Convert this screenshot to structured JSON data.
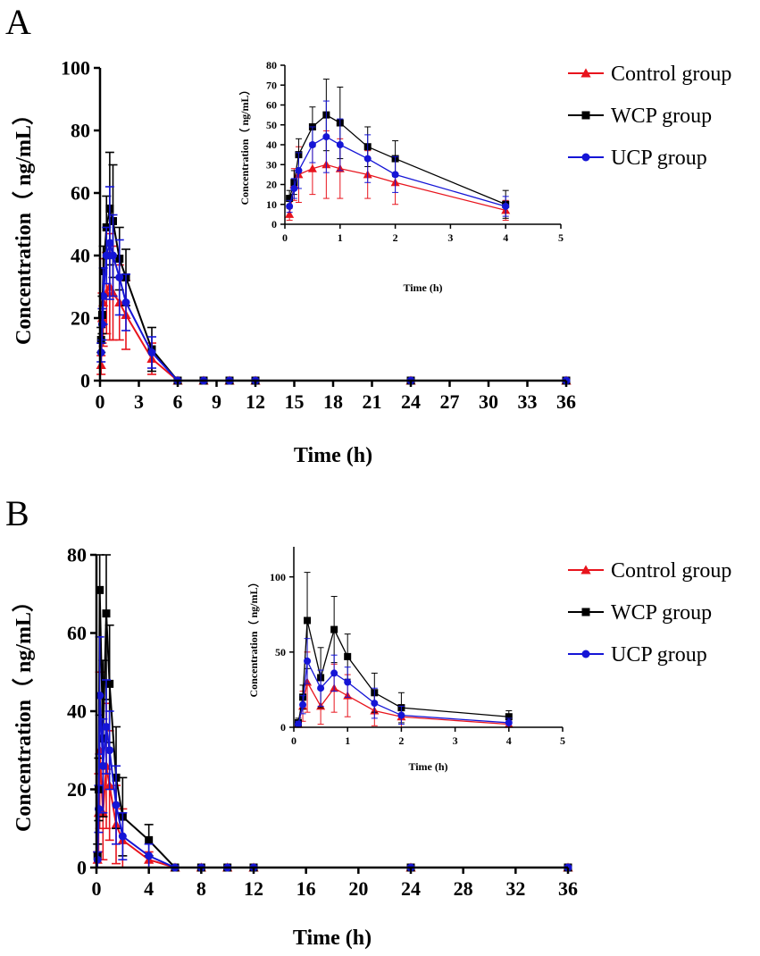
{
  "figure": {
    "colors": {
      "control": "#e8141d",
      "wcp": "#000000",
      "ucp": "#1515d6"
    },
    "legend_labels": [
      "Control group",
      "WCP group",
      "UCP group"
    ]
  },
  "chart_data": [
    {
      "id": "A-main",
      "panel_label": "A",
      "type": "line",
      "xlabel": "Time (h)",
      "ylabel": "Concentration（ ng/mL）",
      "xlim": [
        0,
        36
      ],
      "ylim": [
        0,
        100
      ],
      "xticks": [
        0,
        3,
        6,
        9,
        12,
        15,
        18,
        21,
        24,
        27,
        30,
        33,
        36
      ],
      "yticks": [
        0,
        20,
        40,
        60,
        80,
        100
      ],
      "x": [
        0.083,
        0.167,
        0.25,
        0.5,
        0.75,
        1,
        1.5,
        2,
        4,
        6,
        8,
        10,
        12,
        24,
        36
      ],
      "series": [
        {
          "name": "Control group",
          "key": "control",
          "marker": "triangle",
          "values": [
            5,
            20,
            25,
            28,
            30,
            28,
            25,
            21,
            7,
            0,
            0,
            0,
            0,
            0,
            0
          ],
          "errors": [
            3,
            8,
            14,
            13,
            17,
            15,
            12,
            11,
            5,
            0,
            0,
            0,
            0,
            0,
            0
          ]
        },
        {
          "name": "WCP group",
          "key": "wcp",
          "marker": "square",
          "values": [
            13,
            21,
            35,
            49,
            55,
            51,
            39,
            33,
            10,
            0,
            0,
            0,
            0,
            0,
            0
          ],
          "errors": [
            4,
            6,
            8,
            10,
            18,
            18,
            10,
            9,
            7,
            0,
            0,
            0,
            0,
            0,
            0
          ]
        },
        {
          "name": "UCP group",
          "key": "ucp",
          "marker": "circle",
          "values": [
            9,
            18,
            27,
            40,
            44,
            40,
            33,
            25,
            9,
            0,
            0,
            0,
            0,
            0,
            0
          ],
          "errors": [
            3,
            5,
            9,
            9,
            18,
            13,
            12,
            9,
            5,
            0,
            0,
            0,
            0,
            0,
            0
          ]
        }
      ]
    },
    {
      "id": "A-inset",
      "type": "line",
      "xlabel": "Time (h)",
      "ylabel": "Concentration（ ng/mL）",
      "xlim": [
        0,
        5
      ],
      "ylim": [
        0,
        80
      ],
      "xticks": [
        0,
        1,
        2,
        3,
        4,
        5
      ],
      "yticks": [
        0,
        10,
        20,
        30,
        40,
        50,
        60,
        70,
        80
      ],
      "x": [
        0.083,
        0.167,
        0.25,
        0.5,
        0.75,
        1,
        1.5,
        2,
        4
      ],
      "series": [
        {
          "name": "Control group",
          "key": "control",
          "marker": "triangle",
          "values": [
            5,
            20,
            25,
            28,
            30,
            28,
            25,
            21,
            7
          ],
          "errors": [
            3,
            8,
            14,
            13,
            17,
            15,
            12,
            11,
            5
          ]
        },
        {
          "name": "WCP group",
          "key": "wcp",
          "marker": "square",
          "values": [
            13,
            21,
            35,
            49,
            55,
            51,
            39,
            33,
            10
          ],
          "errors": [
            4,
            6,
            8,
            10,
            18,
            18,
            10,
            9,
            7
          ]
        },
        {
          "name": "UCP group",
          "key": "ucp",
          "marker": "circle",
          "values": [
            9,
            18,
            27,
            40,
            44,
            40,
            33,
            25,
            9
          ],
          "errors": [
            3,
            5,
            9,
            9,
            18,
            13,
            12,
            9,
            5
          ]
        }
      ]
    },
    {
      "id": "B-main",
      "panel_label": "B",
      "type": "line",
      "xlabel": "Time (h)",
      "ylabel": "Concentration（ ng/mL）",
      "xlim": [
        0,
        36
      ],
      "ylim": [
        0,
        80
      ],
      "xticks": [
        0,
        4,
        8,
        12,
        16,
        20,
        24,
        28,
        32,
        36
      ],
      "yticks": [
        0,
        20,
        40,
        60,
        80
      ],
      "x": [
        0.083,
        0.167,
        0.25,
        0.5,
        0.75,
        1,
        1.5,
        2,
        4,
        6,
        8,
        10,
        12,
        24,
        36
      ],
      "series": [
        {
          "name": "Control group",
          "key": "control",
          "marker": "triangle",
          "values": [
            2,
            14,
            30,
            14,
            26,
            21,
            11,
            7,
            2,
            0,
            0,
            0,
            0,
            0,
            0
          ],
          "errors": [
            2,
            10,
            20,
            12,
            16,
            14,
            10,
            8,
            2,
            0,
            0,
            0,
            0,
            0,
            0
          ]
        },
        {
          "name": "WCP group",
          "key": "wcp",
          "marker": "square",
          "values": [
            3,
            20,
            71,
            33,
            65,
            47,
            23,
            13,
            7,
            0,
            0,
            0,
            0,
            0,
            0
          ],
          "errors": [
            3,
            8,
            32,
            20,
            22,
            15,
            13,
            10,
            4,
            0,
            0,
            0,
            0,
            0,
            0
          ]
        },
        {
          "name": "UCP group",
          "key": "ucp",
          "marker": "circle",
          "values": [
            2,
            15,
            44,
            26,
            36,
            30,
            16,
            8,
            3,
            0,
            0,
            0,
            0,
            0,
            0
          ],
          "errors": [
            2,
            6,
            15,
            12,
            12,
            10,
            10,
            6,
            3,
            0,
            0,
            0,
            0,
            0,
            0
          ]
        }
      ]
    },
    {
      "id": "B-inset",
      "type": "line",
      "xlabel": "Time (h)",
      "ylabel": "Concentration（ ng/mL）",
      "xlim": [
        0,
        5
      ],
      "ylim": [
        0,
        120
      ],
      "xticks": [
        0,
        1,
        2,
        3,
        4,
        5
      ],
      "yticks": [
        0,
        50,
        100
      ],
      "x": [
        0.083,
        0.167,
        0.25,
        0.5,
        0.75,
        1,
        1.5,
        2,
        4
      ],
      "series": [
        {
          "name": "Control group",
          "key": "control",
          "marker": "triangle",
          "values": [
            2,
            14,
            30,
            14,
            26,
            21,
            11,
            7,
            2
          ],
          "errors": [
            2,
            10,
            20,
            12,
            16,
            14,
            10,
            8,
            2
          ]
        },
        {
          "name": "WCP group",
          "key": "wcp",
          "marker": "square",
          "values": [
            3,
            20,
            71,
            33,
            65,
            47,
            23,
            13,
            7
          ],
          "errors": [
            3,
            8,
            32,
            20,
            22,
            15,
            13,
            10,
            4
          ]
        },
        {
          "name": "UCP group",
          "key": "ucp",
          "marker": "circle",
          "values": [
            2,
            15,
            44,
            26,
            36,
            30,
            16,
            8,
            3
          ],
          "errors": [
            2,
            6,
            15,
            12,
            12,
            10,
            10,
            6,
            3
          ]
        }
      ]
    }
  ]
}
